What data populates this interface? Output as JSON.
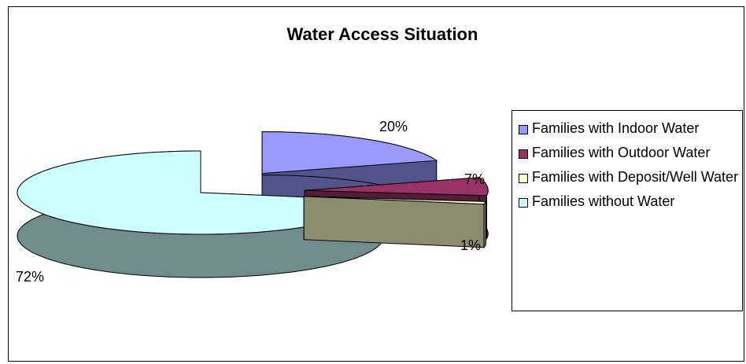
{
  "chart_data": {
    "type": "pie3d",
    "title": "Water Access Situation",
    "categories": [
      "Families with Indoor Water",
      "Families with Outdoor Water",
      "Families with Deposit/Well Water",
      "Families without Water"
    ],
    "values": [
      20,
      7,
      1,
      72
    ],
    "value_labels": [
      "20%",
      "7%",
      "1%",
      "72%"
    ],
    "colors": [
      "#9999ff",
      "#993366",
      "#ffffcc",
      "#ccffff"
    ],
    "legend": "right"
  }
}
